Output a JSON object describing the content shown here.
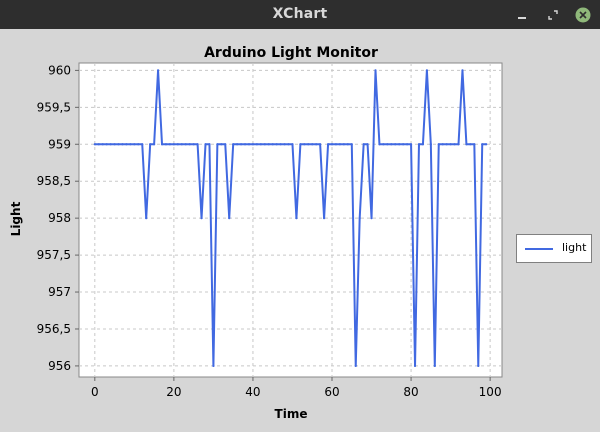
{
  "window": {
    "title": "XChart",
    "controls": [
      {
        "name": "minimize",
        "icon": "minimize-icon"
      },
      {
        "name": "maximize",
        "icon": "maximize-icon"
      },
      {
        "name": "close",
        "icon": "close-icon"
      }
    ]
  },
  "colors": {
    "series": "#4169e1",
    "plot_background": "#ffffff",
    "grid": "#c8c8c8",
    "close_button": "#8fb87a"
  },
  "chart_data": {
    "type": "line",
    "title": "Arduino Light Monitor",
    "xlabel": "Time",
    "ylabel": "Light",
    "xlim": [
      -4,
      103
    ],
    "ylim": [
      955.85,
      960.1
    ],
    "x_ticks": [
      0,
      20,
      40,
      60,
      80,
      100
    ],
    "x_tick_labels": [
      "0",
      "20",
      "40",
      "60",
      "80",
      "100"
    ],
    "y_ticks": [
      956,
      956.5,
      957,
      957.5,
      958,
      958.5,
      959,
      959.5,
      960
    ],
    "y_tick_labels": [
      "956",
      "956,5",
      "957",
      "957,5",
      "958",
      "958,5",
      "959",
      "959,5",
      "960"
    ],
    "grid": true,
    "legend_position": "outside-right",
    "series": [
      {
        "name": "light",
        "x": [
          0,
          1,
          2,
          3,
          4,
          5,
          6,
          7,
          8,
          9,
          10,
          11,
          12,
          13,
          14,
          15,
          16,
          17,
          18,
          19,
          20,
          21,
          22,
          23,
          24,
          25,
          26,
          27,
          28,
          29,
          30,
          31,
          32,
          33,
          34,
          35,
          36,
          37,
          38,
          39,
          40,
          41,
          42,
          43,
          44,
          45,
          46,
          47,
          48,
          49,
          50,
          51,
          52,
          53,
          54,
          55,
          56,
          57,
          58,
          59,
          60,
          61,
          62,
          63,
          64,
          65,
          66,
          67,
          68,
          69,
          70,
          71,
          72,
          73,
          74,
          75,
          76,
          77,
          78,
          79,
          80,
          81,
          82,
          83,
          84,
          85,
          86,
          87,
          88,
          89,
          90,
          91,
          92,
          93,
          94,
          95,
          96,
          97,
          98,
          99
        ],
        "values": [
          959,
          959,
          959,
          959,
          959,
          959,
          959,
          959,
          959,
          959,
          959,
          959,
          959,
          958,
          959,
          959,
          960,
          959,
          959,
          959,
          959,
          959,
          959,
          959,
          959,
          959,
          959,
          958,
          959,
          959,
          956,
          959,
          959,
          959,
          958,
          959,
          959,
          959,
          959,
          959,
          959,
          959,
          959,
          959,
          959,
          959,
          959,
          959,
          959,
          959,
          959,
          958,
          959,
          959,
          959,
          959,
          959,
          959,
          958,
          959,
          959,
          959,
          959,
          959,
          959,
          959,
          956,
          958,
          959,
          959,
          958,
          960,
          959,
          959,
          959,
          959,
          959,
          959,
          959,
          959,
          959,
          956,
          959,
          959,
          960,
          959,
          956,
          959,
          959,
          959,
          959,
          959,
          959,
          960,
          959,
          959,
          959,
          956,
          959,
          959
        ]
      }
    ]
  }
}
